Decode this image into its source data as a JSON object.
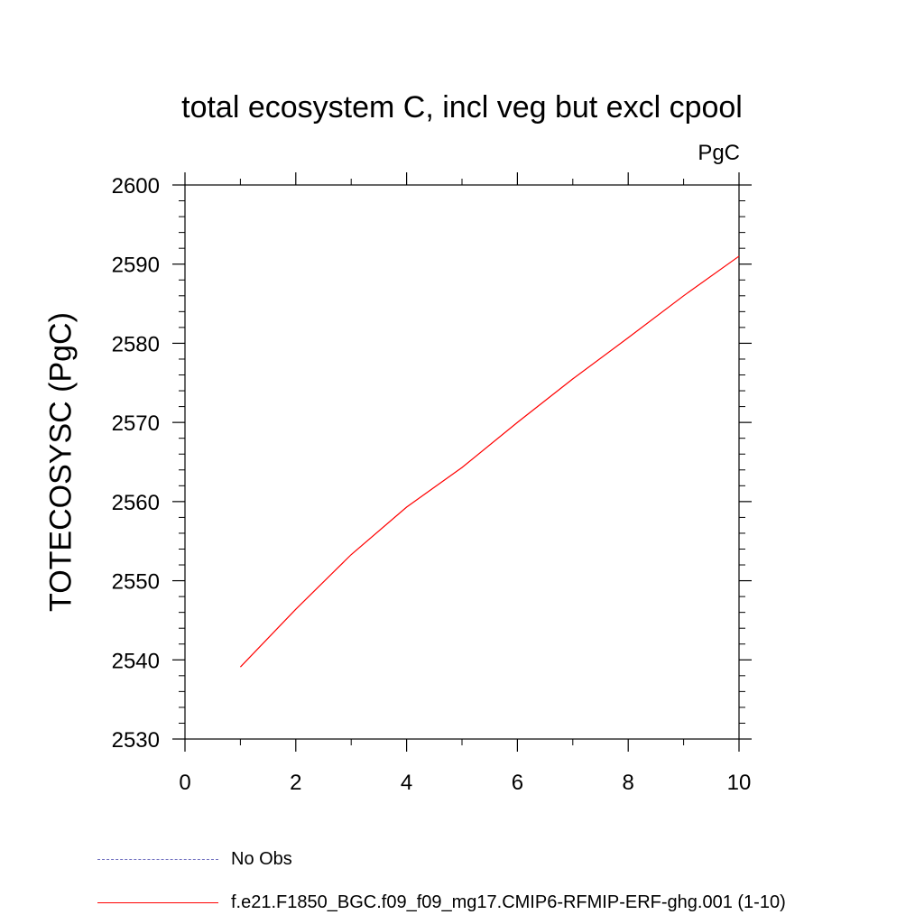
{
  "chart_data": {
    "type": "line",
    "title": "total ecosystem C, incl veg but excl cpool",
    "units_label": "PgC",
    "ylabel": "TOTECOSYSC  (PgC)",
    "xlabel": "",
    "xlim": [
      0,
      10
    ],
    "ylim": [
      2530,
      2600
    ],
    "x_ticks": [
      "0",
      "2",
      "4",
      "6",
      "8",
      "10"
    ],
    "y_ticks": [
      "2530",
      "2540",
      "2550",
      "2560",
      "2570",
      "2580",
      "2590",
      "2600"
    ],
    "grid": false,
    "legend_position": "bottom-left",
    "series": [
      {
        "name": "f.e21.F1850_BGC.f09_f09_mg17.CMIP6-RFMIP-ERF-ghg.001 (1-10)",
        "color": "#ff0000",
        "style": "solid",
        "x": [
          1,
          2,
          3,
          4,
          5,
          6,
          7,
          8,
          9,
          10
        ],
        "y": [
          2539.1,
          2546.4,
          2553.3,
          2559.3,
          2564.3,
          2570.0,
          2575.5,
          2580.7,
          2586.0,
          2591.0
        ]
      }
    ],
    "legend": [
      {
        "label": "No Obs",
        "color": "#7070c0",
        "style": "dashed"
      },
      {
        "label": "f.e21.F1850_BGC.f09_f09_mg17.CMIP6-RFMIP-ERF-ghg.001 (1-10)",
        "color": "#ff0000",
        "style": "solid"
      }
    ]
  }
}
